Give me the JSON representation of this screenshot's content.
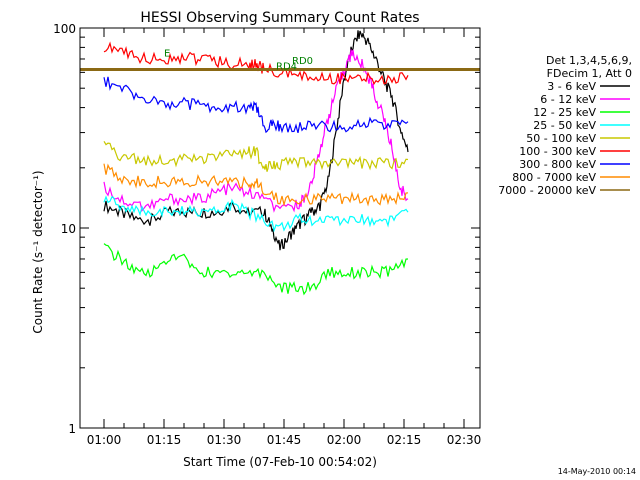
{
  "chart_data": {
    "type": "line",
    "title": "HESSI Observing Summary Count Rates",
    "xlabel": "Start Time (07-Feb-10 00:54:02)",
    "ylabel": "Count Rate (s⁻¹ detector⁻¹)",
    "yscale": "log",
    "ylim": [
      1,
      100
    ],
    "xlim_minutes_after_0054": [
      0,
      100
    ],
    "x_ticks": [
      "01:00",
      "01:15",
      "01:30",
      "01:45",
      "02:00",
      "02:15",
      "02:30"
    ],
    "y_ticks": [
      "1",
      "10",
      "100"
    ],
    "grid": false,
    "legend_position": "right",
    "legend_title": [
      "Det 1,3,4,5,6,9,",
      "FDecim 1, Att 0"
    ],
    "date_stamp": "14-May-2010 00:14",
    "annotations": [
      {
        "text": "RD4",
        "x": "01:43",
        "y": 62
      },
      {
        "text": "RD0",
        "x": "01:47",
        "y": 66
      },
      {
        "text": "E",
        "x": "01:15",
        "y": 72
      }
    ],
    "series": [
      {
        "name": "3 - 6 keV",
        "color": "#000000",
        "points": [
          [
            6,
            13
          ],
          [
            10,
            12
          ],
          [
            14,
            11
          ],
          [
            18,
            11
          ],
          [
            22,
            12
          ],
          [
            26,
            12
          ],
          [
            30,
            12
          ],
          [
            34,
            12
          ],
          [
            38,
            13
          ],
          [
            42,
            12
          ],
          [
            46,
            12
          ],
          [
            48,
            10
          ],
          [
            50,
            8
          ],
          [
            52,
            9
          ],
          [
            54,
            10
          ],
          [
            56,
            11
          ],
          [
            58,
            12
          ],
          [
            60,
            13
          ],
          [
            62,
            17
          ],
          [
            64,
            30
          ],
          [
            66,
            55
          ],
          [
            68,
            80
          ],
          [
            70,
            95
          ],
          [
            72,
            85
          ],
          [
            74,
            70
          ],
          [
            76,
            55
          ],
          [
            78,
            45
          ],
          [
            80,
            32
          ],
          [
            82,
            24
          ]
        ]
      },
      {
        "name": "6 - 12 keV",
        "color": "#ff00ff",
        "points": [
          [
            6,
            16
          ],
          [
            10,
            14
          ],
          [
            14,
            13
          ],
          [
            18,
            13
          ],
          [
            22,
            14
          ],
          [
            26,
            14
          ],
          [
            30,
            14
          ],
          [
            34,
            15
          ],
          [
            38,
            16
          ],
          [
            42,
            15
          ],
          [
            46,
            14
          ],
          [
            50,
            12
          ],
          [
            54,
            13
          ],
          [
            56,
            14
          ],
          [
            58,
            17
          ],
          [
            60,
            25
          ],
          [
            62,
            35
          ],
          [
            64,
            48
          ],
          [
            66,
            62
          ],
          [
            68,
            75
          ],
          [
            70,
            68
          ],
          [
            72,
            58
          ],
          [
            74,
            45
          ],
          [
            76,
            35
          ],
          [
            78,
            25
          ],
          [
            80,
            16
          ],
          [
            82,
            14
          ]
        ]
      },
      {
        "name": "12 - 25 keV",
        "color": "#00ff00",
        "points": [
          [
            6,
            8
          ],
          [
            10,
            7
          ],
          [
            14,
            6
          ],
          [
            18,
            6
          ],
          [
            22,
            7
          ],
          [
            26,
            7
          ],
          [
            30,
            6
          ],
          [
            34,
            6
          ],
          [
            38,
            6
          ],
          [
            42,
            6
          ],
          [
            46,
            6
          ],
          [
            50,
            5
          ],
          [
            54,
            5
          ],
          [
            58,
            5
          ],
          [
            62,
            6
          ],
          [
            66,
            6
          ],
          [
            70,
            6
          ],
          [
            74,
            6
          ],
          [
            78,
            6
          ],
          [
            82,
            7
          ]
        ]
      },
      {
        "name": "25 - 50 keV",
        "color": "#00ffff",
        "points": [
          [
            6,
            14
          ],
          [
            10,
            13
          ],
          [
            14,
            12
          ],
          [
            18,
            12
          ],
          [
            22,
            12
          ],
          [
            26,
            12
          ],
          [
            30,
            12
          ],
          [
            34,
            12
          ],
          [
            38,
            13
          ],
          [
            42,
            12
          ],
          [
            46,
            11
          ],
          [
            50,
            10
          ],
          [
            54,
            11
          ],
          [
            58,
            11
          ],
          [
            62,
            11
          ],
          [
            66,
            11
          ],
          [
            70,
            11
          ],
          [
            74,
            11
          ],
          [
            78,
            11
          ],
          [
            82,
            12
          ]
        ]
      },
      {
        "name": "50 - 100 keV",
        "color": "#c8c800",
        "points": [
          [
            6,
            26
          ],
          [
            10,
            23
          ],
          [
            14,
            22
          ],
          [
            18,
            22
          ],
          [
            22,
            22
          ],
          [
            26,
            22
          ],
          [
            30,
            22
          ],
          [
            34,
            22
          ],
          [
            38,
            24
          ],
          [
            42,
            24
          ],
          [
            44,
            24
          ],
          [
            46,
            20
          ],
          [
            48,
            21
          ],
          [
            50,
            21
          ],
          [
            54,
            21
          ],
          [
            58,
            21
          ],
          [
            62,
            21
          ],
          [
            66,
            21
          ],
          [
            70,
            21
          ],
          [
            74,
            21
          ],
          [
            78,
            21
          ],
          [
            82,
            22
          ]
        ]
      },
      {
        "name": "100 - 300 keV",
        "color": "#ff0000",
        "points": [
          [
            6,
            80
          ],
          [
            10,
            77
          ],
          [
            14,
            72
          ],
          [
            18,
            70
          ],
          [
            22,
            70
          ],
          [
            26,
            72
          ],
          [
            30,
            70
          ],
          [
            34,
            68
          ],
          [
            38,
            66
          ],
          [
            42,
            66
          ],
          [
            44,
            66
          ],
          [
            46,
            62
          ],
          [
            50,
            60
          ],
          [
            54,
            58
          ],
          [
            58,
            57
          ],
          [
            62,
            56
          ],
          [
            66,
            56
          ],
          [
            70,
            56
          ],
          [
            74,
            55
          ],
          [
            78,
            55
          ],
          [
            82,
            58
          ]
        ]
      },
      {
        "name": "300 - 800 keV",
        "color": "#0000ff",
        "points": [
          [
            6,
            55
          ],
          [
            10,
            50
          ],
          [
            14,
            46
          ],
          [
            18,
            43
          ],
          [
            22,
            42
          ],
          [
            26,
            42
          ],
          [
            30,
            41
          ],
          [
            34,
            40
          ],
          [
            38,
            40
          ],
          [
            42,
            40
          ],
          [
            44,
            40
          ],
          [
            46,
            32
          ],
          [
            48,
            33
          ],
          [
            50,
            32
          ],
          [
            54,
            32
          ],
          [
            58,
            32
          ],
          [
            62,
            32
          ],
          [
            66,
            32
          ],
          [
            70,
            33
          ],
          [
            74,
            33
          ],
          [
            78,
            33
          ],
          [
            82,
            34
          ]
        ]
      },
      {
        "name": "800 - 7000 keV",
        "color": "#ff8c00",
        "points": [
          [
            6,
            20
          ],
          [
            10,
            18
          ],
          [
            14,
            17
          ],
          [
            18,
            17
          ],
          [
            22,
            17
          ],
          [
            26,
            17
          ],
          [
            30,
            17
          ],
          [
            34,
            17
          ],
          [
            38,
            17
          ],
          [
            42,
            17
          ],
          [
            44,
            17
          ],
          [
            46,
            15
          ],
          [
            50,
            14
          ],
          [
            54,
            14
          ],
          [
            58,
            14
          ],
          [
            62,
            14
          ],
          [
            66,
            14
          ],
          [
            70,
            14
          ],
          [
            74,
            14
          ],
          [
            78,
            14
          ],
          [
            82,
            15
          ]
        ]
      },
      {
        "name": "7000 - 20000 keV",
        "color": "#8b6914",
        "points": [
          [
            0,
            62
          ],
          [
            100,
            62
          ]
        ]
      }
    ]
  }
}
